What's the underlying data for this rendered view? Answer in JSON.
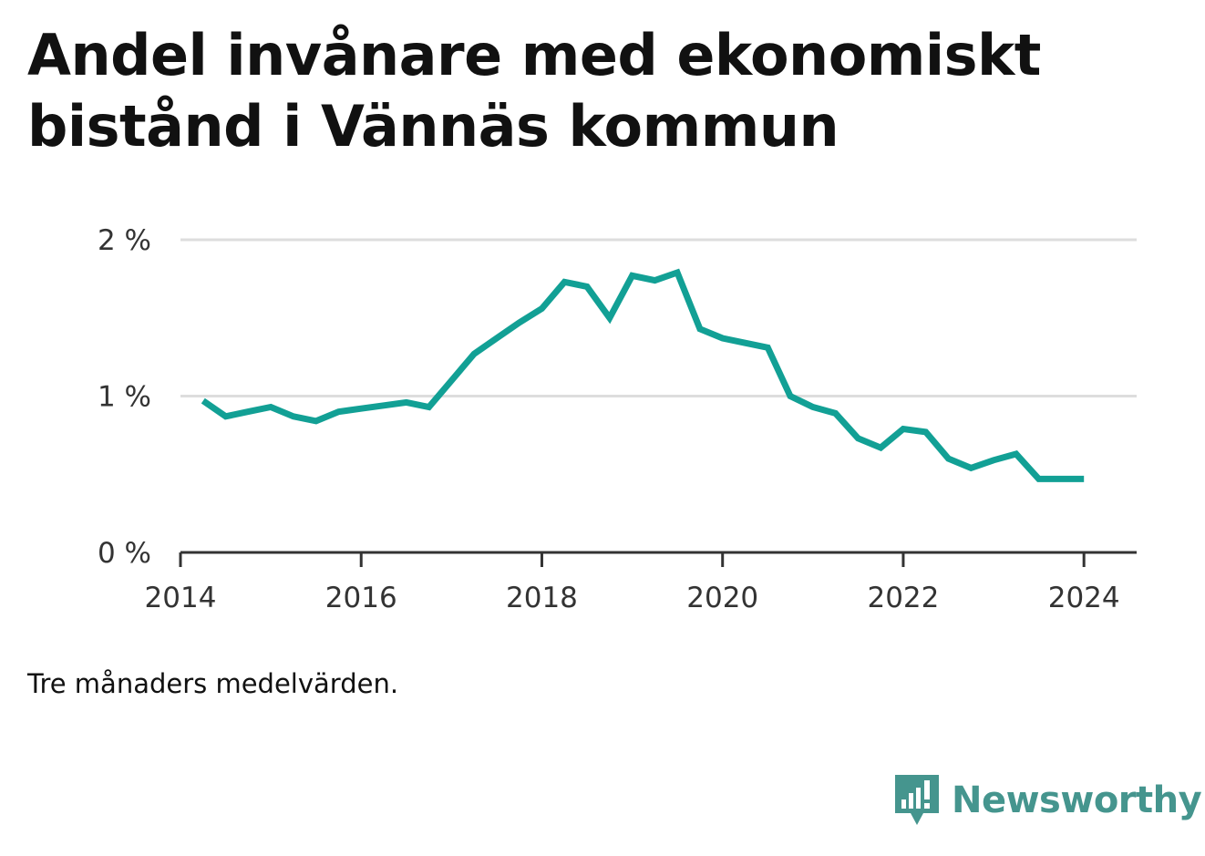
{
  "title": "Andel invånare med ekonomiskt bistånd i Vännäs kommun",
  "note": "Tre månaders medelvärden.",
  "brand": {
    "name": "Newsworthy",
    "icon": "newsworthy-logo-icon",
    "color": "#45958e"
  },
  "colors": {
    "line": "#12a095",
    "grid": "#dddddd",
    "axis": "#333333",
    "text": "#111111"
  },
  "chart_data": {
    "type": "line",
    "title": "Andel invånare med ekonomiskt bistånd i Vännäs kommun",
    "xlabel": "",
    "ylabel": "",
    "x_ticks": [
      "2014",
      "2016",
      "2018",
      "2020",
      "2022",
      "2024"
    ],
    "y_ticks": [
      "0 %",
      "1 %",
      "2 %"
    ],
    "xlim": [
      "2014-01",
      "2024-08"
    ],
    "ylim": [
      0,
      2
    ],
    "grid": true,
    "legend": "none",
    "series": [
      {
        "x": [
          "2014-04",
          "2014-07",
          "2014-10",
          "2015-01",
          "2015-04",
          "2015-07",
          "2015-10",
          "2016-01",
          "2016-04",
          "2016-07",
          "2016-10",
          "2017-01",
          "2017-04",
          "2017-07",
          "2017-10",
          "2018-01",
          "2018-04",
          "2018-07",
          "2018-10",
          "2019-01",
          "2019-04",
          "2019-07",
          "2019-10",
          "2020-01",
          "2020-04",
          "2020-07",
          "2020-10",
          "2021-01",
          "2021-04",
          "2021-07",
          "2021-10",
          "2022-01",
          "2022-04",
          "2022-07",
          "2022-10",
          "2023-01",
          "2023-04",
          "2023-07",
          "2023-10",
          "2024-01"
        ],
        "values": [
          0.97,
          0.87,
          0.9,
          0.93,
          0.87,
          0.84,
          0.9,
          0.92,
          0.94,
          0.96,
          0.93,
          1.1,
          1.27,
          1.37,
          1.47,
          1.56,
          1.73,
          1.7,
          1.5,
          1.77,
          1.74,
          1.79,
          1.43,
          1.37,
          1.34,
          1.31,
          1.0,
          0.93,
          0.89,
          0.73,
          0.67,
          0.79,
          0.77,
          0.6,
          0.54,
          0.59,
          0.63,
          0.47,
          0.47,
          0.47
        ]
      }
    ]
  }
}
